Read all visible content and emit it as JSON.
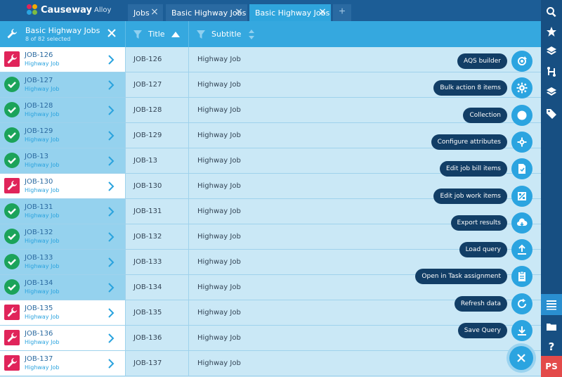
{
  "brand": {
    "name": "Causeway",
    "sub": "Alloy"
  },
  "tabs": [
    {
      "label": "Jobs",
      "active": false
    },
    {
      "label": "Basic Highway Jobs",
      "active": false
    },
    {
      "label": "Basic Highway Jobs",
      "active": true
    }
  ],
  "selection": {
    "title": "Basic Highway Jobs",
    "count": "8 of 82 selected"
  },
  "columns": {
    "title": "Title",
    "subtitle": "Subtitle"
  },
  "rows": [
    {
      "code": "JOB-126",
      "type": "Highway Job",
      "title": "JOB-126",
      "subtitle": "Highway Job",
      "selected": false
    },
    {
      "code": "JOB-127",
      "type": "Highway Job",
      "title": "JOB-127",
      "subtitle": "Highway Job",
      "selected": true
    },
    {
      "code": "JOB-128",
      "type": "Highway Job",
      "title": "JOB-128",
      "subtitle": "Highway Job",
      "selected": true
    },
    {
      "code": "JOB-129",
      "type": "Highway Job",
      "title": "JOB-129",
      "subtitle": "Highway Job",
      "selected": true
    },
    {
      "code": "JOB-13",
      "type": "Highway Job",
      "title": "JOB-13",
      "subtitle": "Highway Job",
      "selected": true
    },
    {
      "code": "JOB-130",
      "type": "Highway Job",
      "title": "JOB-130",
      "subtitle": "Highway Job",
      "selected": false
    },
    {
      "code": "JOB-131",
      "type": "Highway Job",
      "title": "JOB-131",
      "subtitle": "Highway Job",
      "selected": true
    },
    {
      "code": "JOB-132",
      "type": "Highway Job",
      "title": "JOB-132",
      "subtitle": "Highway Job",
      "selected": true
    },
    {
      "code": "JOB-133",
      "type": "Highway Job",
      "title": "JOB-133",
      "subtitle": "Highway Job",
      "selected": true
    },
    {
      "code": "JOB-134",
      "type": "Highway Job",
      "title": "JOB-134",
      "subtitle": "Highway Job",
      "selected": true
    },
    {
      "code": "JOB-135",
      "type": "Highway Job",
      "title": "JOB-135",
      "subtitle": "Highway Job",
      "selected": false
    },
    {
      "code": "JOB-136",
      "type": "Highway Job",
      "title": "JOB-136",
      "subtitle": "Highway Job",
      "selected": false
    },
    {
      "code": "JOB-137",
      "type": "Highway Job",
      "title": "JOB-137",
      "subtitle": "Highway Job",
      "selected": false
    }
  ],
  "actions": [
    {
      "label": "AQS builder",
      "icon": "refresh-cog-icon"
    },
    {
      "label": "Bulk action 8 items",
      "icon": "gear-icon"
    },
    {
      "label": "Collection",
      "icon": "circle-icon"
    },
    {
      "label": "Configure attributes",
      "icon": "gear-small-icon"
    },
    {
      "label": "Edit job bill items",
      "icon": "document-icon"
    },
    {
      "label": "Edit job work items",
      "icon": "workitems-icon"
    },
    {
      "label": "Export results",
      "icon": "cloud-download-icon"
    },
    {
      "label": "Load query",
      "icon": "upload-icon"
    },
    {
      "label": "Open in Task assignment",
      "icon": "clipboard-icon"
    },
    {
      "label": "Refresh data",
      "icon": "refresh-icon"
    },
    {
      "label": "Save Query",
      "icon": "download-icon"
    }
  ],
  "user": {
    "initials": "PS"
  },
  "colors": {
    "topbar": "#1c5d96",
    "header": "#35a8df",
    "accent": "#2ba4e0",
    "danger": "#e0245a",
    "success": "#1ba35a"
  }
}
